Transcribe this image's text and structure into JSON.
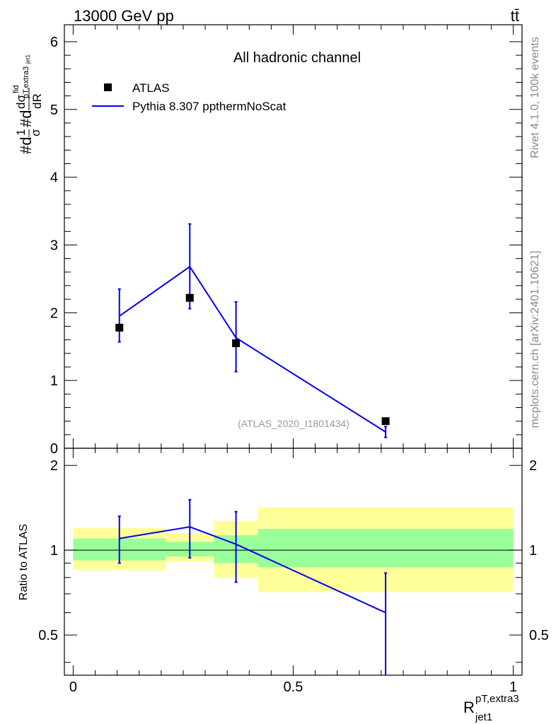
{
  "header": {
    "left": "13000 GeV pp",
    "right": "tt̄"
  },
  "side_labels": {
    "rivet": "Rivet 4.1.0,  100k events",
    "mcplots": "mcplots.cern.ch [arXiv:2401.10621]"
  },
  "chart_data": {
    "type": "line",
    "title": "All hadronic channel",
    "analysis_label": "(ATLAS_2020_I1801434)",
    "ylabel_main": "#d¹/σ #d dσ^fid / dR (p^T,extra3_jet1)",
    "ylabel_main_parts": {
      "prefix": "#d",
      "frac1_num": "1",
      "frac1_den": "σ",
      "mid": "#d",
      "frac2_num": "dσ",
      "frac2_num_sup": "fid",
      "frac2_den": "dR",
      "sub1": "pT,extra3",
      "sub2": "jet1"
    },
    "ylabel_ratio": "Ratio to ATLAS",
    "xlabel_main": "R",
    "xlabel_sup": "pT,extra3",
    "xlabel_sub": "jet1",
    "xlim": [
      -0.02,
      1.02
    ],
    "ylim_main": [
      0,
      6.25
    ],
    "ylim_ratio": [
      0.36,
      2.3
    ],
    "x_ticks": [
      0,
      0.5,
      1
    ],
    "x_tick_labels": [
      "0",
      "0.5",
      "1"
    ],
    "y_ticks_main": [
      0,
      1,
      2,
      3,
      4,
      5,
      6
    ],
    "y_tick_labels_main": [
      "0",
      "1",
      "2",
      "3",
      "4",
      "5",
      "6"
    ],
    "y_ticks_ratio": [
      0.5,
      1,
      2
    ],
    "y_tick_labels_ratio": [
      "0.5",
      "1",
      "2"
    ],
    "legend": [
      {
        "name": "ATLAS",
        "marker": "square",
        "color": "#000000"
      },
      {
        "name": "Pythia 8.307 ppthermNoScat",
        "marker": "line",
        "color": "#0000ee"
      }
    ],
    "data": {
      "name": "ATLAS",
      "x": [
        0.105,
        0.265,
        0.37,
        0.71
      ],
      "y": [
        1.78,
        2.22,
        1.55,
        0.4
      ],
      "yerr": [
        0.0,
        0.0,
        0.0,
        0.0
      ]
    },
    "mc": {
      "name": "Pythia 8.307 ppthermNoScat",
      "x": [
        0.105,
        0.265,
        0.37,
        0.71
      ],
      "y": [
        1.95,
        2.68,
        1.63,
        0.24
      ],
      "yerr_low": [
        0.38,
        0.62,
        0.5,
        0.08
      ],
      "yerr_high": [
        0.4,
        0.63,
        0.53,
        0.08
      ]
    },
    "ratio": {
      "x": [
        0.105,
        0.265,
        0.37,
        0.71
      ],
      "y": [
        1.1,
        1.21,
        1.05,
        0.6
      ],
      "err_low": [
        0.2,
        0.27,
        0.28,
        0.25
      ],
      "err_high": [
        0.22,
        0.3,
        0.32,
        0.23
      ]
    },
    "bands": [
      {
        "x0": 0.0,
        "x1": 0.21,
        "green": [
          0.92,
          1.1
        ],
        "yellow": [
          0.85,
          1.2
        ]
      },
      {
        "x0": 0.21,
        "x1": 0.32,
        "green": [
          0.95,
          1.07
        ],
        "yellow": [
          0.91,
          1.15
        ]
      },
      {
        "x0": 0.32,
        "x1": 0.42,
        "green": [
          0.9,
          1.13
        ],
        "yellow": [
          0.8,
          1.27
        ]
      },
      {
        "x0": 0.42,
        "x1": 1.0,
        "green": [
          0.87,
          1.19
        ],
        "yellow": [
          0.71,
          1.42
        ]
      }
    ],
    "colors": {
      "mc": "#0000ee",
      "data": "#000000",
      "green_band": "#99ff99",
      "yellow_band": "#ffff99",
      "analysis_label": "#999999",
      "side_label": "#888888"
    }
  }
}
